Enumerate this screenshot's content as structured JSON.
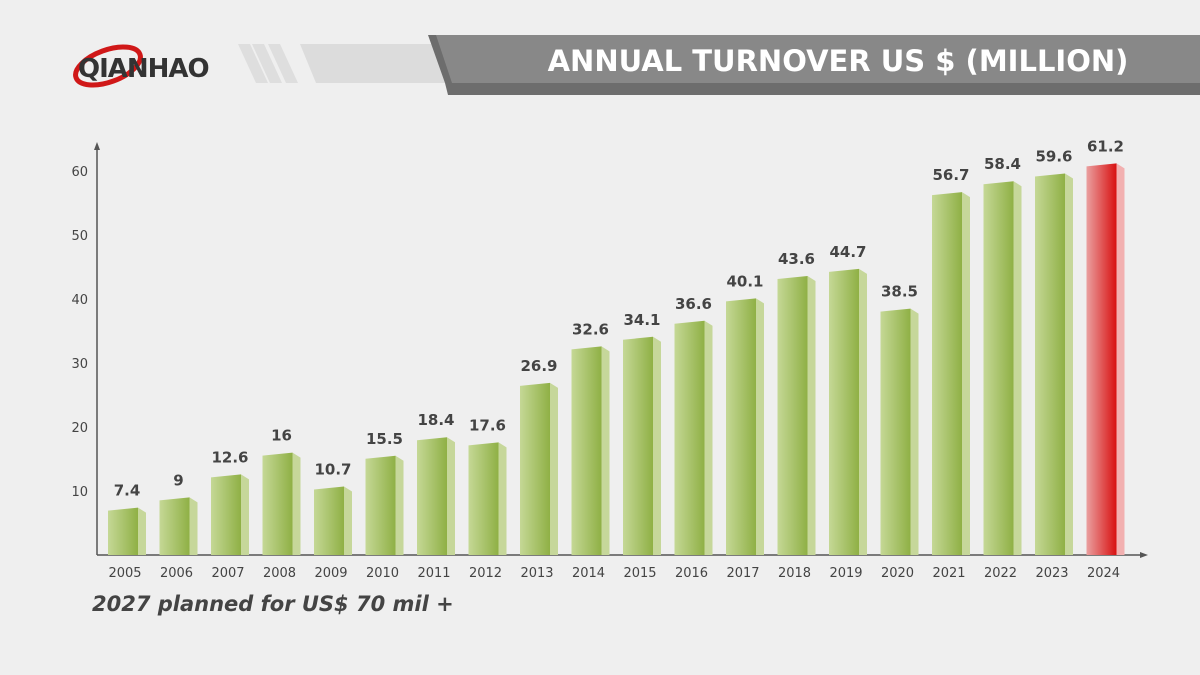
{
  "brand": {
    "logo_text": "QIANHAO"
  },
  "header": {
    "title": "ANNUAL TURNOVER US $ (MILLION)"
  },
  "footer_note": "2027 planned for US$ 70 mil +",
  "colors": {
    "bar": "#9dbb55",
    "highlight": "#e02020",
    "header": "#888888"
  },
  "chart_data": {
    "type": "bar",
    "title": "ANNUAL TURNOVER US $ (MILLION)",
    "xlabel": "",
    "ylabel": "",
    "ylim": [
      0,
      60
    ],
    "yticks": [
      10,
      20,
      30,
      40,
      50,
      60
    ],
    "categories": [
      "2005",
      "2006",
      "2007",
      "2008",
      "2009",
      "2010",
      "2011",
      "2012",
      "2013",
      "2014",
      "2015",
      "2016",
      "2017",
      "2018",
      "2019",
      "2020",
      "2021",
      "2022",
      "2023",
      "2024"
    ],
    "values": [
      7.4,
      9,
      12.6,
      16,
      10.7,
      15.5,
      18.4,
      17.6,
      26.9,
      32.6,
      34.1,
      36.6,
      40.1,
      43.6,
      44.7,
      38.5,
      56.7,
      58.4,
      59.6,
      61.2
    ],
    "labels": [
      "7.4",
      "9",
      "12.6",
      "16",
      "10.7",
      "15.5",
      "18.4",
      "17.6",
      "26.9",
      "32.6",
      "34.1",
      "36.6",
      "40.1",
      "43.6",
      "44.7",
      "38.5",
      "56.7",
      "58.4",
      "59.6",
      "61.2"
    ],
    "highlight": "2024",
    "grid": false
  }
}
